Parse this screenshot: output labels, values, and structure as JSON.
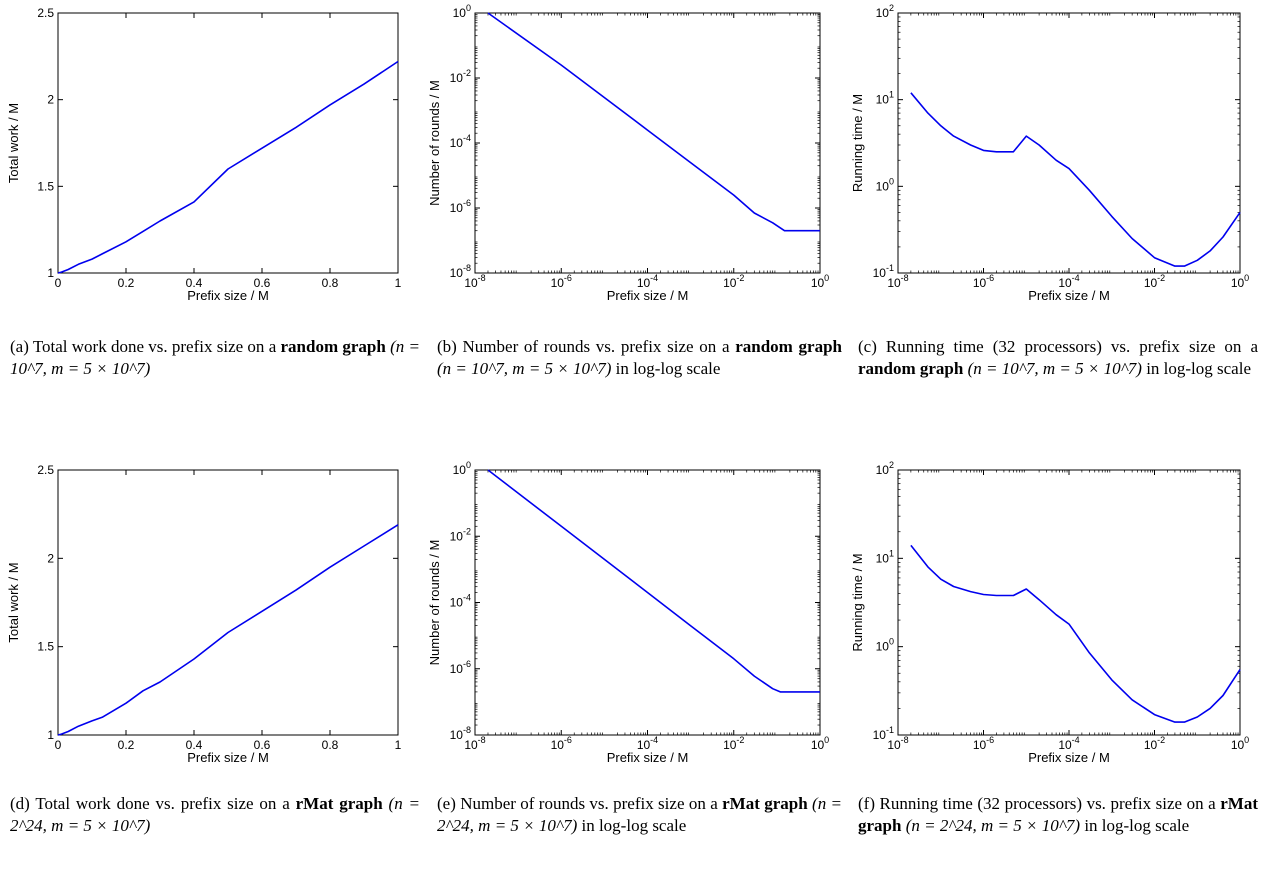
{
  "chart_data": [
    {
      "id": "a",
      "type": "line",
      "xlabel": "Prefix size / M",
      "ylabel": "Total work / M",
      "xscale": "linear",
      "yscale": "linear",
      "xlim": [
        0,
        1
      ],
      "ylim": [
        1,
        2.5
      ],
      "xticks": [
        0,
        0.2,
        0.4,
        0.6,
        0.8,
        1
      ],
      "xtick_labels": [
        "0",
        "0.2",
        "0.4",
        "0.6",
        "0.8",
        "1"
      ],
      "yticks": [
        1,
        1.5,
        2,
        2.5
      ],
      "ytick_labels": [
        "1",
        "1.5",
        "2",
        "2.5"
      ],
      "series": [
        {
          "color": "#0000ee",
          "x": [
            0,
            0.01,
            0.03,
            0.06,
            0.1,
            0.13,
            0.2,
            0.25,
            0.3,
            0.4,
            0.5,
            0.6,
            0.7,
            0.8,
            0.9,
            1
          ],
          "y": [
            1,
            1.005,
            1.02,
            1.05,
            1.08,
            1.11,
            1.18,
            1.24,
            1.3,
            1.41,
            1.6,
            1.72,
            1.84,
            1.97,
            2.09,
            2.22
          ]
        }
      ],
      "caption": {
        "label": "(a) Total work done vs. prefix size on a",
        "bold": "random graph",
        "math": "(n = 10^7, m = 5 × 10^7)"
      }
    },
    {
      "id": "b",
      "type": "line",
      "xlabel": "Prefix size / M",
      "ylabel": "Number of rounds / M",
      "xscale": "log",
      "yscale": "log",
      "xlim": [
        1e-08,
        1
      ],
      "ylim": [
        1e-08,
        1
      ],
      "xticks": [
        1e-08,
        1e-06,
        0.0001,
        0.01,
        1
      ],
      "xtick_labels": [
        "10^-8",
        "10^-6",
        "10^-4",
        "10^-2",
        "10^0"
      ],
      "yticks": [
        1e-08,
        1e-06,
        0.0001,
        0.01,
        1
      ],
      "ytick_labels": [
        "10^-8",
        "10^-6",
        "10^-4",
        "10^-2",
        "10^0"
      ],
      "series": [
        {
          "color": "#0000ee",
          "x": [
            2e-08,
            1e-06,
            0.0001,
            0.001,
            0.01,
            0.03,
            0.08,
            0.15,
            0.3,
            1
          ],
          "y": [
            1,
            0.025,
            0.00025,
            2.5e-05,
            2.5e-06,
            7e-07,
            3.5e-07,
            2e-07,
            2e-07,
            2e-07
          ]
        }
      ],
      "caption": {
        "label": "(b) Number of rounds vs. prefix size on a",
        "bold": "random graph",
        "math": "(n = 10^7, m = 5 × 10^7)",
        "tail": "in log-log scale"
      }
    },
    {
      "id": "c",
      "type": "line",
      "xlabel": "Prefix size / M",
      "ylabel": "Running time / M",
      "xscale": "log",
      "yscale": "log",
      "xlim": [
        1e-08,
        1
      ],
      "ylim": [
        0.1,
        100
      ],
      "xticks": [
        1e-08,
        1e-06,
        0.0001,
        0.01,
        1
      ],
      "xtick_labels": [
        "10^-8",
        "10^-6",
        "10^-4",
        "10^-2",
        "10^0"
      ],
      "yticks": [
        0.1,
        1,
        10,
        100
      ],
      "ytick_labels": [
        "10^-1",
        "10^0",
        "10^1",
        "10^2"
      ],
      "series": [
        {
          "color": "#0000ee",
          "x": [
            2e-08,
            5e-08,
            1e-07,
            2e-07,
            5e-07,
            1e-06,
            2e-06,
            5e-06,
            1e-05,
            2e-05,
            5e-05,
            0.0001,
            0.0003,
            0.001,
            0.003,
            0.01,
            0.03,
            0.05,
            0.1,
            0.2,
            0.4,
            1
          ],
          "y": [
            12,
            7,
            5,
            3.8,
            3,
            2.6,
            2.5,
            2.5,
            3.8,
            3,
            2,
            1.6,
            0.9,
            0.45,
            0.25,
            0.15,
            0.12,
            0.12,
            0.14,
            0.18,
            0.26,
            0.5
          ]
        }
      ],
      "caption": {
        "label": "(c) Running time (32 processors) vs. prefix size on a",
        "bold": "random graph",
        "math": "(n = 10^7, m = 5 × 10^7)",
        "tail": "in log-log scale"
      }
    },
    {
      "id": "d",
      "type": "line",
      "xlabel": "Prefix size / M",
      "ylabel": "Total work / M",
      "xscale": "linear",
      "yscale": "linear",
      "xlim": [
        0,
        1
      ],
      "ylim": [
        1,
        2.5
      ],
      "xticks": [
        0,
        0.2,
        0.4,
        0.6,
        0.8,
        1
      ],
      "xtick_labels": [
        "0",
        "0.2",
        "0.4",
        "0.6",
        "0.8",
        "1"
      ],
      "yticks": [
        1,
        1.5,
        2,
        2.5
      ],
      "ytick_labels": [
        "1",
        "1.5",
        "2",
        "2.5"
      ],
      "series": [
        {
          "color": "#0000ee",
          "x": [
            0,
            0.01,
            0.03,
            0.06,
            0.1,
            0.13,
            0.2,
            0.25,
            0.3,
            0.4,
            0.5,
            0.6,
            0.7,
            0.8,
            0.9,
            1
          ],
          "y": [
            1,
            1.005,
            1.02,
            1.05,
            1.08,
            1.1,
            1.18,
            1.25,
            1.3,
            1.43,
            1.58,
            1.7,
            1.82,
            1.95,
            2.07,
            2.19
          ]
        }
      ],
      "caption": {
        "label": "(d) Total work done vs. prefix size on a",
        "bold": "rMat graph",
        "math": "(n = 2^24, m = 5 × 10^7)"
      }
    },
    {
      "id": "e",
      "type": "line",
      "xlabel": "Prefix size / M",
      "ylabel": "Number of rounds / M",
      "xscale": "log",
      "yscale": "log",
      "xlim": [
        1e-08,
        1
      ],
      "ylim": [
        1e-08,
        1
      ],
      "xticks": [
        1e-08,
        1e-06,
        0.0001,
        0.01,
        1
      ],
      "xtick_labels": [
        "10^-8",
        "10^-6",
        "10^-4",
        "10^-2",
        "10^0"
      ],
      "yticks": [
        1e-08,
        1e-06,
        0.0001,
        0.01,
        1
      ],
      "ytick_labels": [
        "10^-8",
        "10^-6",
        "10^-4",
        "10^-2",
        "10^0"
      ],
      "series": [
        {
          "color": "#0000ee",
          "x": [
            2e-08,
            1e-06,
            0.0001,
            0.001,
            0.01,
            0.03,
            0.08,
            0.12,
            0.3,
            1
          ],
          "y": [
            1,
            0.02,
            0.0002,
            2e-05,
            2e-06,
            6e-07,
            2.5e-07,
            2e-07,
            2e-07,
            2e-07
          ]
        }
      ],
      "caption": {
        "label": "(e) Number of rounds vs. prefix size on a",
        "bold": "rMat graph",
        "math": "(n = 2^24, m = 5 × 10^7)",
        "tail": "in log-log scale"
      }
    },
    {
      "id": "f",
      "type": "line",
      "xlabel": "Prefix size / M",
      "ylabel": "Running time / M",
      "xscale": "log",
      "yscale": "log",
      "xlim": [
        1e-08,
        1
      ],
      "ylim": [
        0.1,
        100
      ],
      "xticks": [
        1e-08,
        1e-06,
        0.0001,
        0.01,
        1
      ],
      "xtick_labels": [
        "10^-8",
        "10^-6",
        "10^-4",
        "10^-2",
        "10^0"
      ],
      "yticks": [
        0.1,
        1,
        10,
        100
      ],
      "ytick_labels": [
        "10^-1",
        "10^0",
        "10^1",
        "10^2"
      ],
      "series": [
        {
          "color": "#0000ee",
          "x": [
            2e-08,
            5e-08,
            1e-07,
            2e-07,
            5e-07,
            1e-06,
            2e-06,
            5e-06,
            1e-05,
            2e-05,
            5e-05,
            0.0001,
            0.0003,
            0.001,
            0.003,
            0.01,
            0.03,
            0.05,
            0.1,
            0.2,
            0.4,
            1
          ],
          "y": [
            14,
            8,
            5.8,
            4.8,
            4.2,
            3.9,
            3.8,
            3.8,
            4.5,
            3.4,
            2.3,
            1.8,
            0.85,
            0.42,
            0.25,
            0.17,
            0.14,
            0.14,
            0.16,
            0.2,
            0.28,
            0.55
          ]
        }
      ],
      "caption": {
        "label": "(f) Running time (32 processors) vs. prefix size on a",
        "bold": "rMat graph",
        "math": "(n = 2^24, m = 5 × 10^7)",
        "tail": "in log-log scale"
      }
    }
  ]
}
